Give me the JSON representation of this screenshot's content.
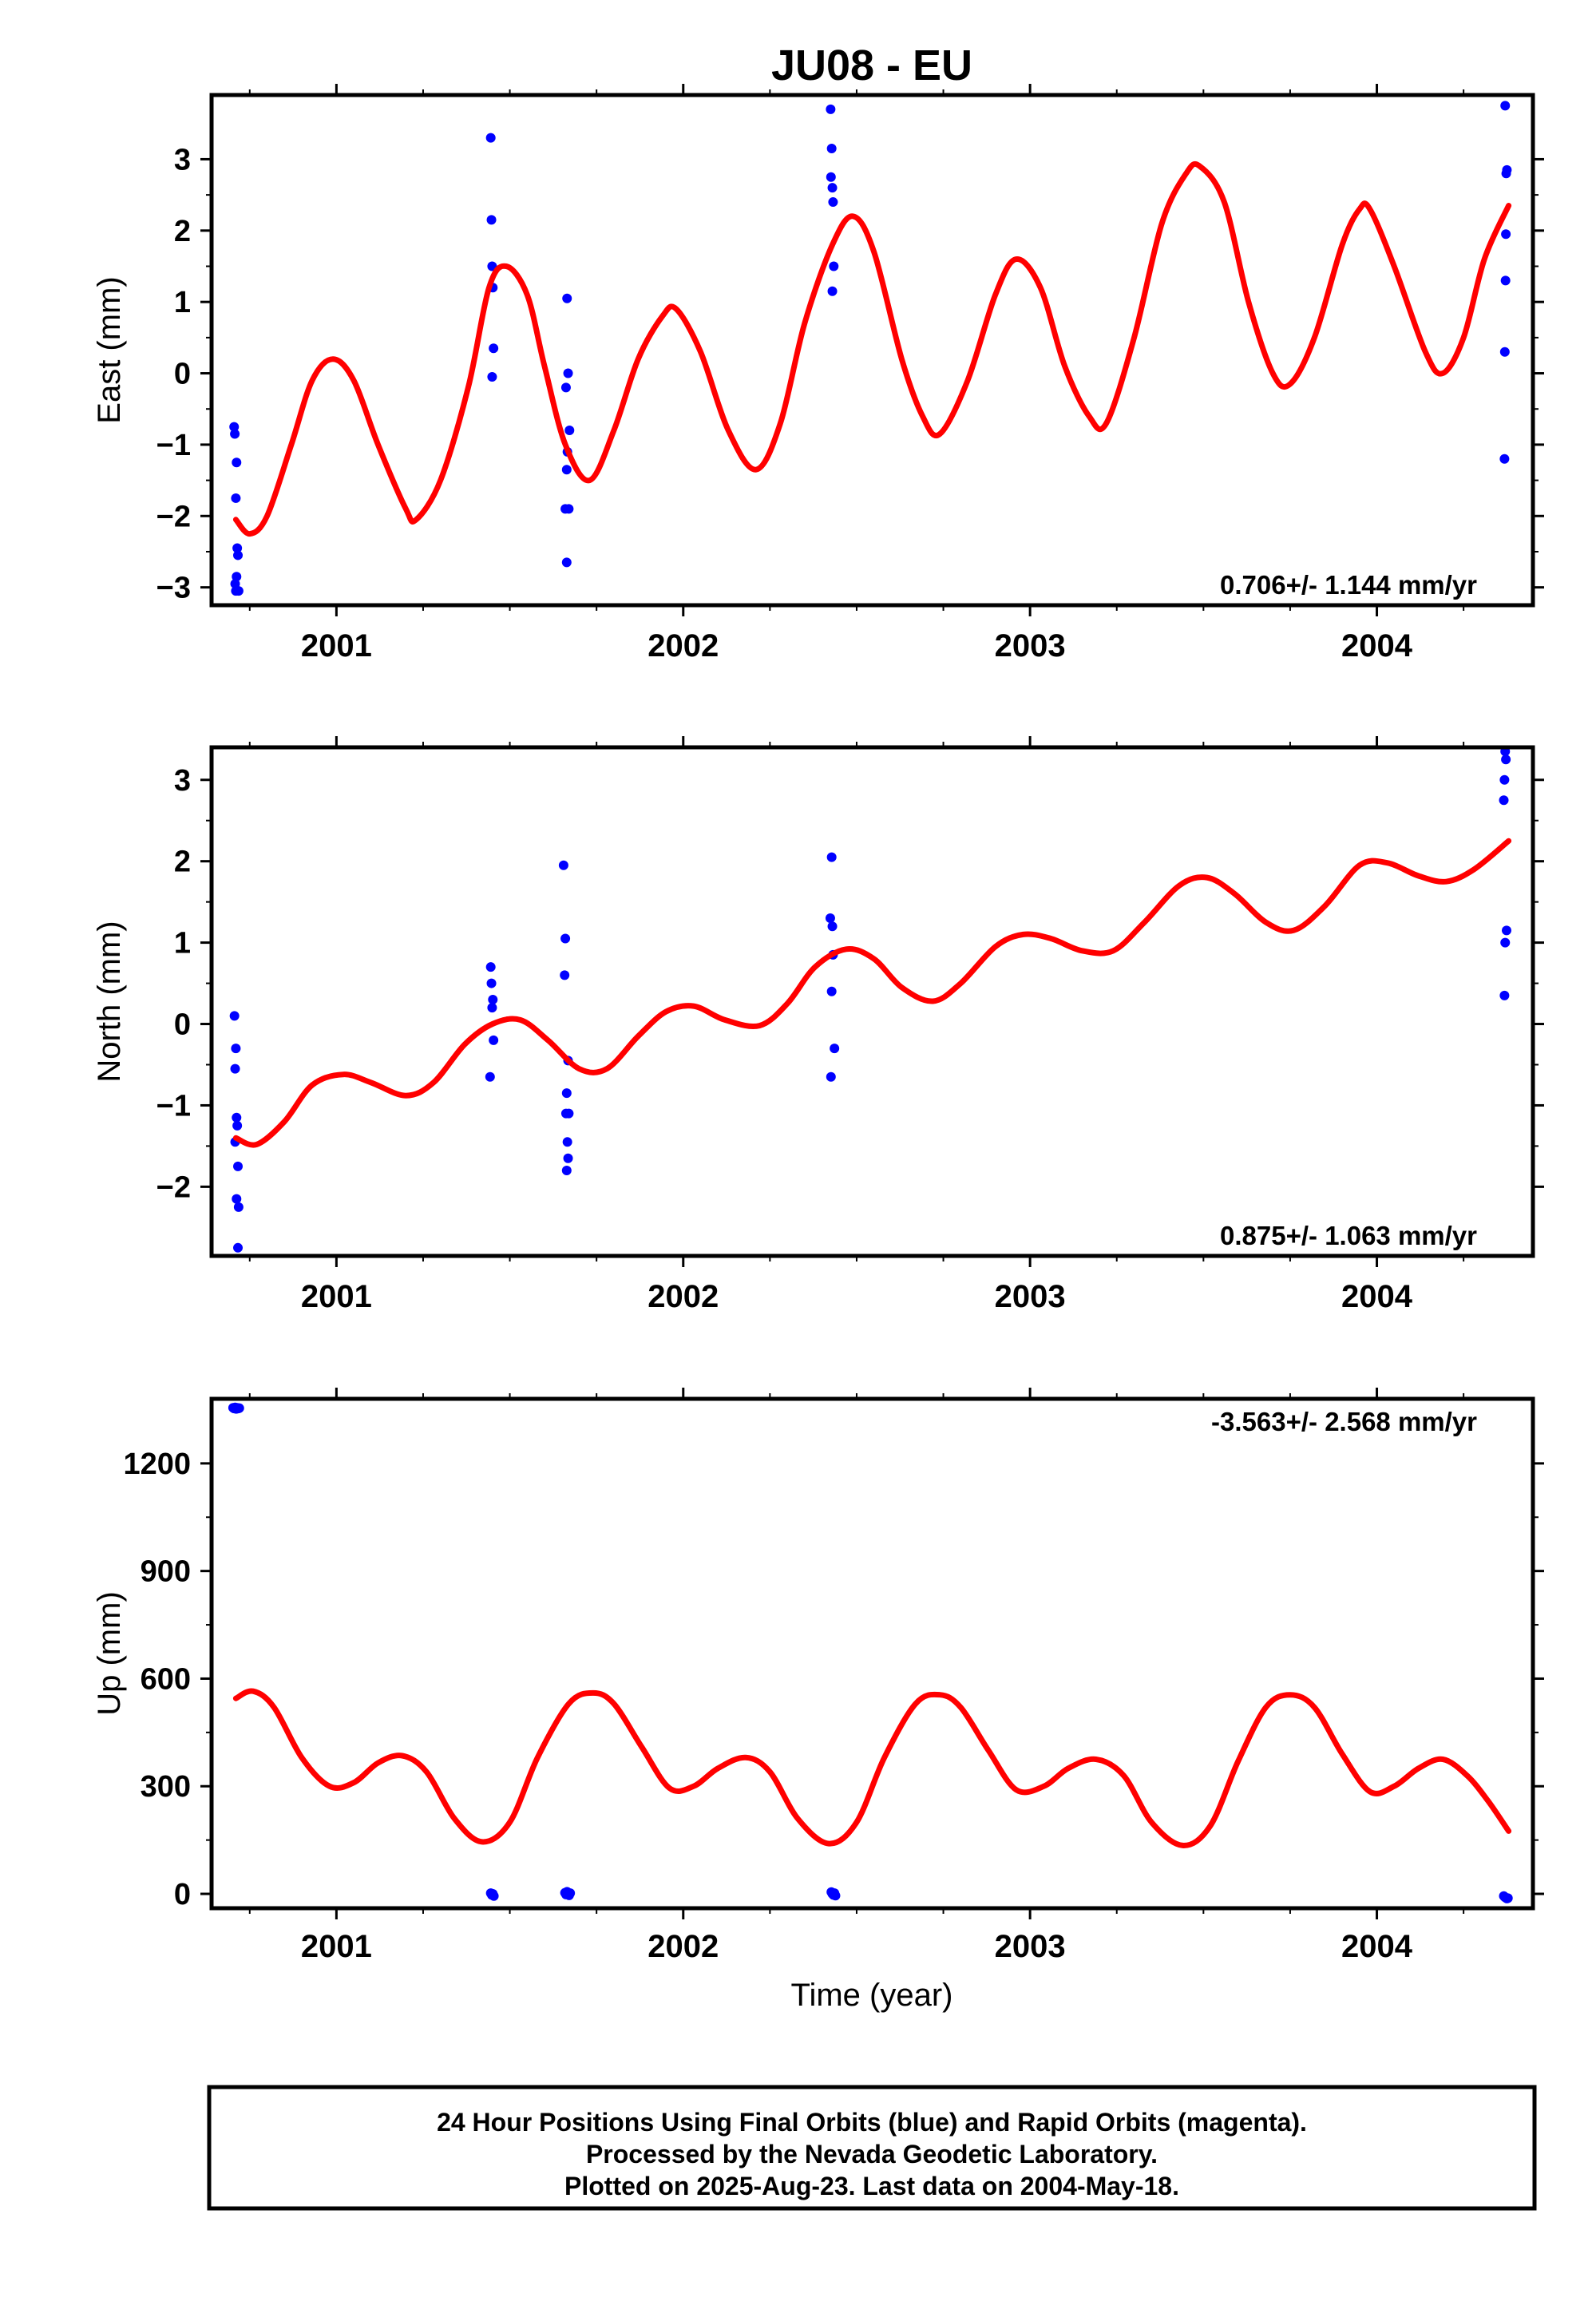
{
  "chart_data": {
    "type": "scatter",
    "title": "JU08 - EU",
    "xlabel": "Time (year)",
    "x_ticks": [
      2001,
      2002,
      2003,
      2004
    ],
    "xlim": [
      2000.64,
      2004.45
    ],
    "colors": {
      "obs": "#0000ff",
      "model": "#ff0000"
    },
    "panels": [
      {
        "id": "east",
        "ylabel": "East (mm)",
        "ylim": [
          -3.25,
          3.9
        ],
        "yticks": [
          -3,
          -2,
          -1,
          0,
          1,
          2,
          3
        ],
        "rate_text": "0.706+/- 1.144 mm/yr",
        "rate_pos": "bottom-right",
        "model": {
          "points": [
            [
              2000.71,
              -2.05
            ],
            [
              2000.75,
              -2.25
            ],
            [
              2000.8,
              -2.0
            ],
            [
              2000.87,
              -1.0
            ],
            [
              2000.93,
              -0.1
            ],
            [
              2000.99,
              0.2
            ],
            [
              2001.05,
              -0.1
            ],
            [
              2001.12,
              -1.0
            ],
            [
              2001.2,
              -1.9
            ],
            [
              2001.23,
              -2.05
            ],
            [
              2001.3,
              -1.5
            ],
            [
              2001.38,
              -0.2
            ],
            [
              2001.44,
              1.2
            ],
            [
              2001.49,
              1.5
            ],
            [
              2001.55,
              1.1
            ],
            [
              2001.6,
              0.1
            ],
            [
              2001.66,
              -1.0
            ],
            [
              2001.73,
              -1.5
            ],
            [
              2001.8,
              -0.8
            ],
            [
              2001.87,
              0.2
            ],
            [
              2001.94,
              0.8
            ],
            [
              2001.98,
              0.9
            ],
            [
              2002.05,
              0.3
            ],
            [
              2002.13,
              -0.8
            ],
            [
              2002.21,
              -1.35
            ],
            [
              2002.28,
              -0.7
            ],
            [
              2002.35,
              0.7
            ],
            [
              2002.43,
              1.8
            ],
            [
              2002.49,
              2.2
            ],
            [
              2002.55,
              1.7
            ],
            [
              2002.63,
              0.2
            ],
            [
              2002.69,
              -0.6
            ],
            [
              2002.74,
              -0.85
            ],
            [
              2002.82,
              -0.1
            ],
            [
              2002.9,
              1.1
            ],
            [
              2002.96,
              1.6
            ],
            [
              2003.03,
              1.2
            ],
            [
              2003.1,
              0.1
            ],
            [
              2003.17,
              -0.6
            ],
            [
              2003.22,
              -0.7
            ],
            [
              2003.3,
              0.5
            ],
            [
              2003.38,
              2.1
            ],
            [
              2003.45,
              2.8
            ],
            [
              2003.49,
              2.9
            ],
            [
              2003.56,
              2.4
            ],
            [
              2003.63,
              1.0
            ],
            [
              2003.7,
              0.0
            ],
            [
              2003.75,
              -0.15
            ],
            [
              2003.82,
              0.5
            ],
            [
              2003.9,
              1.8
            ],
            [
              2003.95,
              2.3
            ],
            [
              2003.98,
              2.3
            ],
            [
              2004.05,
              1.5
            ],
            [
              2004.14,
              0.3
            ],
            [
              2004.19,
              0.0
            ],
            [
              2004.25,
              0.5
            ],
            [
              2004.31,
              1.6
            ],
            [
              2004.38,
              2.35
            ]
          ]
        },
        "observations": [
          [
            2000.705,
            -0.75
          ],
          [
            2000.707,
            -0.85
          ],
          [
            2000.71,
            -1.75
          ],
          [
            2000.712,
            -1.25
          ],
          [
            2000.714,
            -2.45
          ],
          [
            2000.716,
            -2.55
          ],
          [
            2000.712,
            -2.85
          ],
          [
            2000.708,
            -2.95
          ],
          [
            2000.71,
            -3.05
          ],
          [
            2000.718,
            -3.05
          ],
          [
            2001.445,
            3.3
          ],
          [
            2001.447,
            2.15
          ],
          [
            2001.449,
            1.5
          ],
          [
            2001.451,
            1.2
          ],
          [
            2001.453,
            0.35
          ],
          [
            2001.449,
            -0.05
          ],
          [
            2001.665,
            1.05
          ],
          [
            2001.668,
            0.0
          ],
          [
            2001.662,
            -0.2
          ],
          [
            2001.672,
            -0.8
          ],
          [
            2001.666,
            -1.1
          ],
          [
            2001.664,
            -1.35
          ],
          [
            2001.66,
            -1.9
          ],
          [
            2001.67,
            -1.9
          ],
          [
            2001.664,
            -2.65
          ],
          [
            2002.425,
            3.7
          ],
          [
            2002.428,
            3.15
          ],
          [
            2002.426,
            2.75
          ],
          [
            2002.43,
            2.6
          ],
          [
            2002.432,
            2.4
          ],
          [
            2002.434,
            1.5
          ],
          [
            2002.43,
            1.15
          ],
          [
            2004.37,
            3.75
          ],
          [
            2004.375,
            2.85
          ],
          [
            2004.373,
            2.8
          ],
          [
            2004.372,
            1.95
          ],
          [
            2004.371,
            1.3
          ],
          [
            2004.369,
            0.3
          ],
          [
            2004.368,
            -1.2
          ]
        ]
      },
      {
        "id": "north",
        "ylabel": "North (mm)",
        "ylim": [
          -2.85,
          3.4
        ],
        "yticks": [
          -2,
          -1,
          0,
          1,
          2,
          3
        ],
        "rate_text": "0.875+/- 1.063 mm/yr",
        "rate_pos": "bottom-right",
        "model": {
          "points": [
            [
              2000.71,
              -1.4
            ],
            [
              2000.77,
              -1.48
            ],
            [
              2000.85,
              -1.2
            ],
            [
              2000.93,
              -0.75
            ],
            [
              2001.02,
              -0.62
            ],
            [
              2001.1,
              -0.72
            ],
            [
              2001.2,
              -0.88
            ],
            [
              2001.28,
              -0.72
            ],
            [
              2001.37,
              -0.25
            ],
            [
              2001.45,
              0.0
            ],
            [
              2001.53,
              0.05
            ],
            [
              2001.61,
              -0.2
            ],
            [
              2001.7,
              -0.55
            ],
            [
              2001.78,
              -0.55
            ],
            [
              2001.87,
              -0.15
            ],
            [
              2001.95,
              0.15
            ],
            [
              2002.03,
              0.22
            ],
            [
              2002.12,
              0.05
            ],
            [
              2002.22,
              -0.02
            ],
            [
              2002.3,
              0.25
            ],
            [
              2002.38,
              0.7
            ],
            [
              2002.47,
              0.92
            ],
            [
              2002.55,
              0.8
            ],
            [
              2002.63,
              0.45
            ],
            [
              2002.72,
              0.28
            ],
            [
              2002.8,
              0.5
            ],
            [
              2002.9,
              0.95
            ],
            [
              2002.98,
              1.1
            ],
            [
              2003.06,
              1.05
            ],
            [
              2003.15,
              0.9
            ],
            [
              2003.24,
              0.9
            ],
            [
              2003.33,
              1.25
            ],
            [
              2003.43,
              1.7
            ],
            [
              2003.51,
              1.8
            ],
            [
              2003.59,
              1.6
            ],
            [
              2003.68,
              1.25
            ],
            [
              2003.76,
              1.15
            ],
            [
              2003.85,
              1.45
            ],
            [
              2003.95,
              1.95
            ],
            [
              2004.03,
              1.98
            ],
            [
              2004.12,
              1.82
            ],
            [
              2004.2,
              1.75
            ],
            [
              2004.28,
              1.9
            ],
            [
              2004.38,
              2.25
            ]
          ]
        },
        "observations": [
          [
            2000.706,
            0.1
          ],
          [
            2000.71,
            -0.3
          ],
          [
            2000.708,
            -0.55
          ],
          [
            2000.712,
            -1.15
          ],
          [
            2000.714,
            -1.25
          ],
          [
            2000.708,
            -1.45
          ],
          [
            2000.716,
            -1.75
          ],
          [
            2000.712,
            -2.15
          ],
          [
            2000.718,
            -2.25
          ],
          [
            2000.716,
            -2.75
          ],
          [
            2001.445,
            0.7
          ],
          [
            2001.447,
            0.5
          ],
          [
            2001.451,
            0.3
          ],
          [
            2001.449,
            0.2
          ],
          [
            2001.453,
            -0.2
          ],
          [
            2001.443,
            -0.65
          ],
          [
            2001.655,
            1.95
          ],
          [
            2001.66,
            1.05
          ],
          [
            2001.658,
            0.6
          ],
          [
            2001.668,
            -0.45
          ],
          [
            2001.664,
            -0.85
          ],
          [
            2001.67,
            -1.1
          ],
          [
            2001.662,
            -1.1
          ],
          [
            2001.666,
            -1.45
          ],
          [
            2001.668,
            -1.65
          ],
          [
            2001.664,
            -1.8
          ],
          [
            2002.428,
            2.05
          ],
          [
            2002.424,
            1.3
          ],
          [
            2002.43,
            1.2
          ],
          [
            2002.432,
            0.85
          ],
          [
            2002.428,
            0.4
          ],
          [
            2002.436,
            -0.3
          ],
          [
            2002.426,
            -0.65
          ],
          [
            2004.37,
            3.35
          ],
          [
            2004.372,
            3.25
          ],
          [
            2004.368,
            3.0
          ],
          [
            2004.366,
            2.75
          ],
          [
            2004.374,
            1.15
          ],
          [
            2004.37,
            1.0
          ],
          [
            2004.368,
            0.35
          ]
        ]
      },
      {
        "id": "up",
        "ylabel": "Up (mm)",
        "ylim": [
          -40,
          1380
        ],
        "yticks": [
          0,
          300,
          600,
          900,
          1200
        ],
        "rate_text": "-3.563+/- 2.568 mm/yr",
        "rate_pos": "top-right",
        "model": {
          "points": [
            [
              2000.71,
              545
            ],
            [
              2000.76,
              565
            ],
            [
              2000.82,
              520
            ],
            [
              2000.9,
              380
            ],
            [
              2000.98,
              300
            ],
            [
              2001.05,
              310
            ],
            [
              2001.12,
              365
            ],
            [
              2001.19,
              385
            ],
            [
              2001.26,
              340
            ],
            [
              2001.34,
              210
            ],
            [
              2001.42,
              145
            ],
            [
              2001.5,
              200
            ],
            [
              2001.58,
              380
            ],
            [
              2001.67,
              530
            ],
            [
              2001.74,
              560
            ],
            [
              2001.8,
              530
            ],
            [
              2001.88,
              410
            ],
            [
              2001.96,
              295
            ],
            [
              2002.03,
              300
            ],
            [
              2002.1,
              350
            ],
            [
              2002.18,
              380
            ],
            [
              2002.25,
              340
            ],
            [
              2002.33,
              210
            ],
            [
              2002.42,
              140
            ],
            [
              2002.5,
              200
            ],
            [
              2002.58,
              380
            ],
            [
              2002.67,
              530
            ],
            [
              2002.74,
              555
            ],
            [
              2002.8,
              520
            ],
            [
              2002.88,
              400
            ],
            [
              2002.96,
              290
            ],
            [
              2003.04,
              300
            ],
            [
              2003.11,
              350
            ],
            [
              2003.19,
              375
            ],
            [
              2003.27,
              330
            ],
            [
              2003.35,
              200
            ],
            [
              2003.44,
              135
            ],
            [
              2003.52,
              190
            ],
            [
              2003.6,
              370
            ],
            [
              2003.68,
              520
            ],
            [
              2003.75,
              555
            ],
            [
              2003.82,
              520
            ],
            [
              2003.9,
              390
            ],
            [
              2003.98,
              285
            ],
            [
              2004.05,
              300
            ],
            [
              2004.12,
              350
            ],
            [
              2004.19,
              375
            ],
            [
              2004.26,
              330
            ],
            [
              2004.32,
              260
            ],
            [
              2004.38,
              175
            ]
          ]
        },
        "observations": [
          [
            2000.702,
            1355
          ],
          [
            2000.705,
            1353
          ],
          [
            2000.708,
            1356
          ],
          [
            2000.711,
            1352
          ],
          [
            2000.714,
            1355
          ],
          [
            2000.717,
            1353
          ],
          [
            2000.72,
            1354
          ],
          [
            2001.445,
            2
          ],
          [
            2001.448,
            -3
          ],
          [
            2001.451,
            0
          ],
          [
            2001.454,
            -6
          ],
          [
            2001.659,
            3
          ],
          [
            2001.662,
            -2
          ],
          [
            2001.665,
            6
          ],
          [
            2001.668,
            1
          ],
          [
            2001.671,
            -4
          ],
          [
            2001.674,
            2
          ],
          [
            2002.427,
            5
          ],
          [
            2002.43,
            0
          ],
          [
            2002.433,
            -3
          ],
          [
            2002.436,
            2
          ],
          [
            2002.439,
            -5
          ],
          [
            2004.366,
            -6
          ],
          [
            2004.369,
            -9
          ],
          [
            2004.372,
            -11
          ],
          [
            2004.375,
            -13
          ],
          [
            2004.378,
            -12
          ]
        ]
      }
    ]
  },
  "footer": {
    "line1": "24 Hour Positions Using Final Orbits (blue) and Rapid Orbits (magenta).",
    "line2": "Processed by the Nevada Geodetic Laboratory.",
    "line3": "Plotted on 2025-Aug-23. Last data on 2004-May-18."
  }
}
